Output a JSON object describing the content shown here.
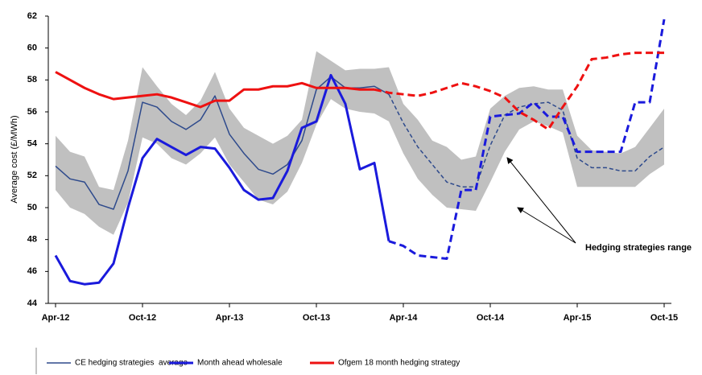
{
  "chart_data": {
    "type": "line",
    "y_label": "Average cost (£/MWh)",
    "ylim": [
      44,
      62
    ],
    "yticks": [
      44,
      46,
      48,
      50,
      52,
      54,
      56,
      58,
      60,
      62
    ],
    "categories": [
      "Apr-12",
      null,
      null,
      null,
      null,
      null,
      "Oct-12",
      null,
      null,
      null,
      null,
      null,
      "Apr-13",
      null,
      null,
      null,
      null,
      null,
      "Oct-13",
      null,
      null,
      null,
      null,
      null,
      "Apr-14",
      null,
      null,
      null,
      null,
      null,
      "Oct-14",
      null,
      null,
      null,
      null,
      null,
      "Apr-15",
      null,
      null,
      null,
      null,
      null,
      "Oct-15"
    ],
    "band": {
      "color": "#c0c0c0",
      "high": [
        54.5,
        53.5,
        53.2,
        51.3,
        51.1,
        54.2,
        58.8,
        57.6,
        56.5,
        55.8,
        56.7,
        58.5,
        56.2,
        55.0,
        54.5,
        54.0,
        54.5,
        55.5,
        59.8,
        59.2,
        58.6,
        58.7,
        58.7,
        58.8,
        56.5,
        55.5,
        54.2,
        53.8,
        53.0,
        53.2,
        56.2,
        57.0,
        57.5,
        57.6,
        57.4,
        57.4,
        54.5,
        53.6,
        53.5,
        53.4,
        53.8,
        55.0,
        56.2
      ],
      "low": [
        51.1,
        50.0,
        49.6,
        48.8,
        48.3,
        50.3,
        54.4,
        54.0,
        53.1,
        52.7,
        53.4,
        54.4,
        52.7,
        51.6,
        50.5,
        50.2,
        51.0,
        52.8,
        55.2,
        56.8,
        56.2,
        56.0,
        55.9,
        55.4,
        53.4,
        51.8,
        50.8,
        50.0,
        49.9,
        49.8,
        51.6,
        53.5,
        54.9,
        55.4,
        55.1,
        54.7,
        51.3,
        51.3,
        51.3,
        51.3,
        51.3,
        52.1,
        52.7
      ]
    },
    "series": [
      {
        "name": "CE hedging strategies  average",
        "color": "#2e4a8c",
        "width": 1.5,
        "dash_from": 23,
        "values": [
          52.6,
          51.8,
          51.6,
          50.2,
          49.9,
          52.3,
          56.6,
          56.3,
          55.4,
          54.9,
          55.5,
          57.0,
          54.6,
          53.4,
          52.4,
          52.1,
          52.7,
          54.2,
          57.4,
          58.2,
          57.5,
          57.5,
          57.6,
          57.1,
          55.3,
          53.8,
          52.7,
          51.6,
          51.3,
          51.3,
          53.9,
          55.8,
          56.3,
          56.5,
          56.6,
          56.1,
          53.1,
          52.5,
          52.5,
          52.3,
          52.3,
          53.2,
          53.8
        ]
      },
      {
        "name": "Month ahead wholesale",
        "color": "#1a1adc",
        "width": 3,
        "dash_from": 23,
        "values": [
          47.0,
          45.4,
          45.2,
          45.3,
          46.5,
          50.0,
          53.1,
          54.3,
          53.8,
          53.3,
          53.8,
          53.7,
          52.5,
          51.1,
          50.5,
          50.6,
          52.3,
          55.0,
          55.4,
          58.3,
          56.5,
          52.4,
          52.8,
          47.9,
          47.6,
          47.0,
          46.9,
          46.8,
          51.1,
          51.1,
          55.7,
          55.8,
          55.9,
          56.6,
          55.7,
          55.7,
          53.5,
          53.5,
          53.5,
          53.5,
          56.6,
          56.6,
          61.8
        ]
      },
      {
        "name": "Ofgem 18 month hedging strategy",
        "color": "#ee1111",
        "width": 3,
        "dash_from": 22,
        "values": [
          58.5,
          58.0,
          57.5,
          57.1,
          56.8,
          56.9,
          57.0,
          57.1,
          56.9,
          56.6,
          56.3,
          56.7,
          56.7,
          57.4,
          57.4,
          57.6,
          57.6,
          57.8,
          57.5,
          57.5,
          57.5,
          57.4,
          57.4,
          57.2,
          57.1,
          57.0,
          57.2,
          57.5,
          57.8,
          57.6,
          57.3,
          56.9,
          56.0,
          55.5,
          54.9,
          56.3,
          57.6,
          59.3,
          59.4,
          59.6,
          59.7,
          59.7,
          59.7
        ]
      }
    ],
    "annotation": "Hedging strategies range"
  }
}
